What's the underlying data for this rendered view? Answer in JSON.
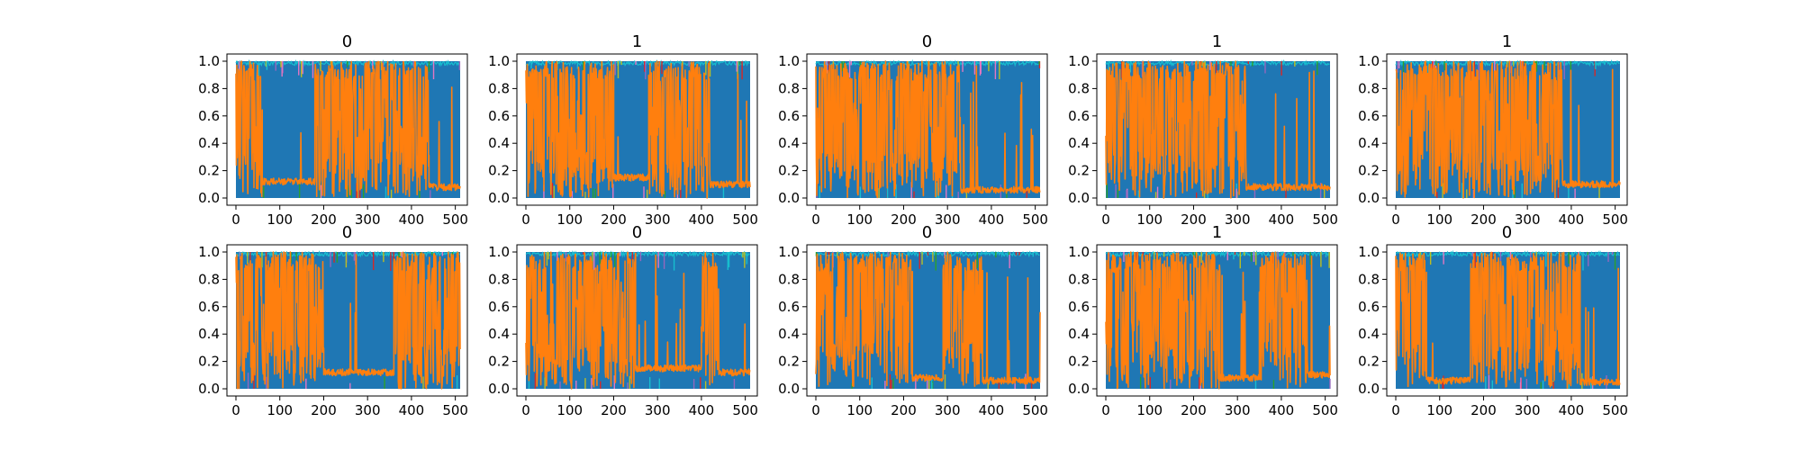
{
  "figure": {
    "background": "#ffffff",
    "series_colors": {
      "blue": "#1f77b4",
      "orange": "#ff7f0e",
      "cyan": "#17becf",
      "green": "#2ca02c",
      "olive": "#bcbd22",
      "red": "#d62728",
      "purple": "#9467bd",
      "pink": "#e377c2"
    }
  },
  "chart_data": [
    {
      "type": "line",
      "title": "0",
      "grid": false,
      "xlim": [
        0,
        511
      ],
      "ylim": [
        0,
        1
      ],
      "xticks": [
        "0",
        "100",
        "200",
        "300",
        "400",
        "500"
      ],
      "yticks": [
        "0.0",
        "0.2",
        "0.4",
        "0.6",
        "0.8",
        "1.0"
      ],
      "orange_segments": [
        {
          "x": [
            0,
            60
          ],
          "level": "high"
        },
        {
          "x": [
            60,
            180
          ],
          "level": "low",
          "value": 0.12
        },
        {
          "x": [
            180,
            440
          ],
          "level": "high"
        },
        {
          "x": [
            440,
            511
          ],
          "level": "low",
          "value": 0.08
        }
      ]
    },
    {
      "type": "line",
      "title": "1",
      "grid": false,
      "xlim": [
        0,
        511
      ],
      "ylim": [
        0,
        1
      ],
      "xticks": [
        "0",
        "100",
        "200",
        "300",
        "400",
        "500"
      ],
      "yticks": [
        "0.0",
        "0.2",
        "0.4",
        "0.6",
        "0.8",
        "1.0"
      ],
      "orange_segments": [
        {
          "x": [
            0,
            200
          ],
          "level": "high"
        },
        {
          "x": [
            200,
            280
          ],
          "level": "low",
          "value": 0.15
        },
        {
          "x": [
            280,
            420
          ],
          "level": "high"
        },
        {
          "x": [
            420,
            511
          ],
          "level": "low",
          "value": 0.1
        }
      ]
    },
    {
      "type": "line",
      "title": "0",
      "grid": false,
      "xlim": [
        0,
        511
      ],
      "ylim": [
        0,
        1
      ],
      "xticks": [
        "0",
        "100",
        "200",
        "300",
        "400",
        "500"
      ],
      "yticks": [
        "0.0",
        "0.2",
        "0.4",
        "0.6",
        "0.8",
        "1.0"
      ],
      "orange_segments": [
        {
          "x": [
            0,
            330
          ],
          "level": "high"
        },
        {
          "x": [
            330,
            511
          ],
          "level": "low",
          "value": 0.06
        }
      ]
    },
    {
      "type": "line",
      "title": "1",
      "grid": false,
      "xlim": [
        0,
        511
      ],
      "ylim": [
        0,
        1
      ],
      "xticks": [
        "0",
        "100",
        "200",
        "300",
        "400",
        "500"
      ],
      "yticks": [
        "0.0",
        "0.2",
        "0.4",
        "0.6",
        "0.8",
        "1.0"
      ],
      "orange_segments": [
        {
          "x": [
            0,
            320
          ],
          "level": "high"
        },
        {
          "x": [
            320,
            511
          ],
          "level": "low",
          "value": 0.08
        }
      ]
    },
    {
      "type": "line",
      "title": "1",
      "grid": false,
      "xlim": [
        0,
        511
      ],
      "ylim": [
        0,
        1
      ],
      "xticks": [
        "0",
        "100",
        "200",
        "300",
        "400",
        "500"
      ],
      "yticks": [
        "0.0",
        "0.2",
        "0.4",
        "0.6",
        "0.8",
        "1.0"
      ],
      "orange_segments": [
        {
          "x": [
            0,
            380
          ],
          "level": "high"
        },
        {
          "x": [
            380,
            511
          ],
          "level": "low",
          "value": 0.1
        }
      ]
    },
    {
      "type": "line",
      "title": "0",
      "grid": false,
      "xlim": [
        0,
        511
      ],
      "ylim": [
        0,
        1
      ],
      "xticks": [
        "0",
        "100",
        "200",
        "300",
        "400",
        "500"
      ],
      "yticks": [
        "0.0",
        "0.2",
        "0.4",
        "0.6",
        "0.8",
        "1.0"
      ],
      "orange_segments": [
        {
          "x": [
            0,
            200
          ],
          "level": "high"
        },
        {
          "x": [
            200,
            360
          ],
          "level": "low",
          "value": 0.12
        },
        {
          "x": [
            360,
            511
          ],
          "level": "high"
        }
      ]
    },
    {
      "type": "line",
      "title": "0",
      "grid": false,
      "xlim": [
        0,
        511
      ],
      "ylim": [
        0,
        1
      ],
      "xticks": [
        "0",
        "100",
        "200",
        "300",
        "400",
        "500"
      ],
      "yticks": [
        "0.0",
        "0.2",
        "0.4",
        "0.6",
        "0.8",
        "1.0"
      ],
      "orange_segments": [
        {
          "x": [
            0,
            250
          ],
          "level": "high"
        },
        {
          "x": [
            250,
            400
          ],
          "level": "low",
          "value": 0.15
        },
        {
          "x": [
            400,
            440
          ],
          "level": "high"
        },
        {
          "x": [
            440,
            511
          ],
          "level": "low",
          "value": 0.12
        }
      ]
    },
    {
      "type": "line",
      "title": "0",
      "grid": false,
      "xlim": [
        0,
        511
      ],
      "ylim": [
        0,
        1
      ],
      "xticks": [
        "0",
        "100",
        "200",
        "300",
        "400",
        "500"
      ],
      "yticks": [
        "0.0",
        "0.2",
        "0.4",
        "0.6",
        "0.8",
        "1.0"
      ],
      "orange_segments": [
        {
          "x": [
            0,
            220
          ],
          "level": "high"
        },
        {
          "x": [
            220,
            290
          ],
          "level": "low",
          "value": 0.08
        },
        {
          "x": [
            290,
            380
          ],
          "level": "high"
        },
        {
          "x": [
            380,
            511
          ],
          "level": "low",
          "value": 0.06
        }
      ]
    },
    {
      "type": "line",
      "title": "1",
      "grid": false,
      "xlim": [
        0,
        511
      ],
      "ylim": [
        0,
        1
      ],
      "xticks": [
        "0",
        "100",
        "200",
        "300",
        "400",
        "500"
      ],
      "yticks": [
        "0.0",
        "0.2",
        "0.4",
        "0.6",
        "0.8",
        "1.0"
      ],
      "orange_segments": [
        {
          "x": [
            0,
            260
          ],
          "level": "high"
        },
        {
          "x": [
            260,
            350
          ],
          "level": "low",
          "value": 0.08
        },
        {
          "x": [
            350,
            460
          ],
          "level": "high"
        },
        {
          "x": [
            460,
            511
          ],
          "level": "low",
          "value": 0.1
        }
      ]
    },
    {
      "type": "line",
      "title": "0",
      "grid": false,
      "xlim": [
        0,
        511
      ],
      "ylim": [
        0,
        1
      ],
      "xticks": [
        "0",
        "100",
        "200",
        "300",
        "400",
        "500"
      ],
      "yticks": [
        "0.0",
        "0.2",
        "0.4",
        "0.6",
        "0.8",
        "1.0"
      ],
      "orange_segments": [
        {
          "x": [
            0,
            70
          ],
          "level": "high"
        },
        {
          "x": [
            70,
            170
          ],
          "level": "low",
          "value": 0.06
        },
        {
          "x": [
            170,
            420
          ],
          "level": "high"
        },
        {
          "x": [
            420,
            511
          ],
          "level": "low",
          "value": 0.05
        }
      ]
    }
  ]
}
